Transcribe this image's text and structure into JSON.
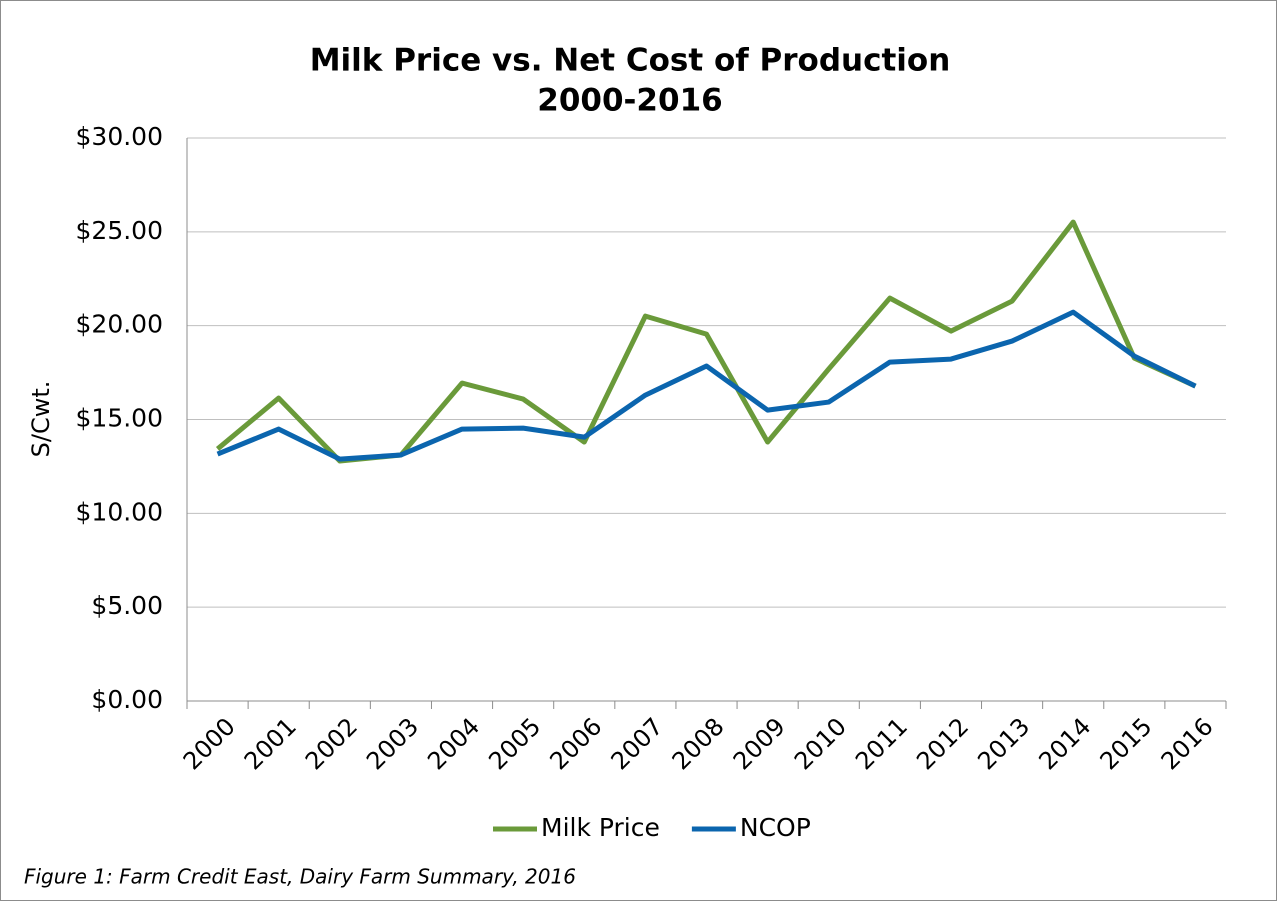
{
  "chart_data": {
    "type": "line",
    "title": "Milk Price vs. Net Cost of Production",
    "subtitle": "2000-2016",
    "y_axis_label": "S/Cwt.",
    "caption": "Figure 1: Farm Credit East, Dairy Farm Summary, 2016",
    "categories": [
      "2000",
      "2001",
      "2002",
      "2003",
      "2004",
      "2005",
      "2006",
      "2007",
      "2008",
      "2009",
      "2010",
      "2011",
      "2012",
      "2013",
      "2014",
      "2015",
      "2016"
    ],
    "series": [
      {
        "name": "Milk Price",
        "color": "#6a9a3a",
        "values": [
          13.43,
          16.14,
          12.79,
          13.11,
          16.94,
          16.09,
          13.8,
          20.51,
          19.55,
          13.8,
          17.69,
          21.47,
          19.71,
          21.31,
          25.52,
          18.27,
          16.78
        ]
      },
      {
        "name": "NCOP",
        "color": "#0b65ae",
        "values": [
          13.16,
          14.49,
          12.89,
          13.11,
          14.49,
          14.54,
          14.06,
          16.3,
          17.85,
          15.5,
          15.93,
          18.06,
          18.22,
          19.18,
          20.72,
          18.38,
          16.78
        ]
      }
    ],
    "ylim": [
      0,
      30
    ],
    "yticks": [
      {
        "value": 0,
        "label": "$0.00"
      },
      {
        "value": 5,
        "label": "$5.00"
      },
      {
        "value": 10,
        "label": "$10.00"
      },
      {
        "value": 15,
        "label": "$15.00"
      },
      {
        "value": 20,
        "label": "$20.00"
      },
      {
        "value": 25,
        "label": "$25.00"
      },
      {
        "value": 30,
        "label": "$30.00"
      }
    ],
    "grid": true,
    "legend": "bottom"
  }
}
